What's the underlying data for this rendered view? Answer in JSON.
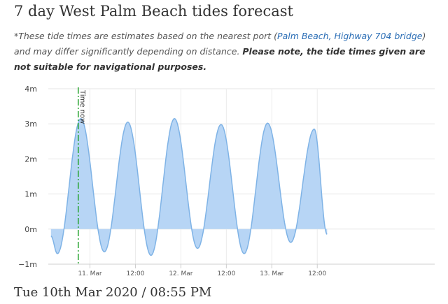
{
  "page": {
    "title": "7 day West Palm Beach tides forecast",
    "note_prefix": "*These tide times are estimates based on the nearest port (",
    "port_link": "Palm Beach, Highway 704 bridge",
    "note_middle": ") and may differ significantly depending on distance. ",
    "note_warning": "Please note, the tide times given are not suitable for navigational purposes.",
    "current_datetime": "Tue 10th Mar 2020 / 08:55 PM"
  },
  "chart_data": {
    "type": "area",
    "title": "",
    "xlabel": "",
    "ylabel": "",
    "y_unit": "m",
    "ylim": [
      -1,
      4
    ],
    "y_ticks": [
      -1,
      0,
      1,
      2,
      3,
      4
    ],
    "y_tick_labels": [
      "−1m",
      "0m",
      "1m",
      "2m",
      "3m",
      "4m"
    ],
    "x_range_hours": [
      -7,
      95
    ],
    "x_ticks": [
      {
        "hour": 4,
        "label": "11. Mar"
      },
      {
        "hour": 16,
        "label": "12:00"
      },
      {
        "hour": 28,
        "label": "12. Mar"
      },
      {
        "hour": 40,
        "label": "12:00"
      },
      {
        "hour": 52,
        "label": "13. Mar"
      },
      {
        "hour": 64,
        "label": "12:00"
      }
    ],
    "now_marker": {
      "hour": 0.9,
      "label": "Time now"
    },
    "series": [
      {
        "color": "#7fb3e6",
        "fill": "#b7d5f5",
        "extrema": [
          {
            "hour": -6.3,
            "height": -0.2
          },
          {
            "hour": -4.6,
            "height": -0.7
          },
          {
            "hour": 1.6,
            "height": 3.15
          },
          {
            "hour": 7.8,
            "height": -0.65
          },
          {
            "hour": 14.0,
            "height": 3.05
          },
          {
            "hour": 20.1,
            "height": -0.75
          },
          {
            "hour": 26.3,
            "height": 3.15
          },
          {
            "hour": 32.4,
            "height": -0.55
          },
          {
            "hour": 38.6,
            "height": 2.98
          },
          {
            "hour": 44.7,
            "height": -0.7
          },
          {
            "hour": 50.9,
            "height": 3.02
          },
          {
            "hour": 57.0,
            "height": -0.38
          },
          {
            "hour": 63.2,
            "height": 2.85
          },
          {
            "hour": 66.6,
            "height": -0.15
          }
        ]
      }
    ],
    "grid": true,
    "legend": "none"
  }
}
